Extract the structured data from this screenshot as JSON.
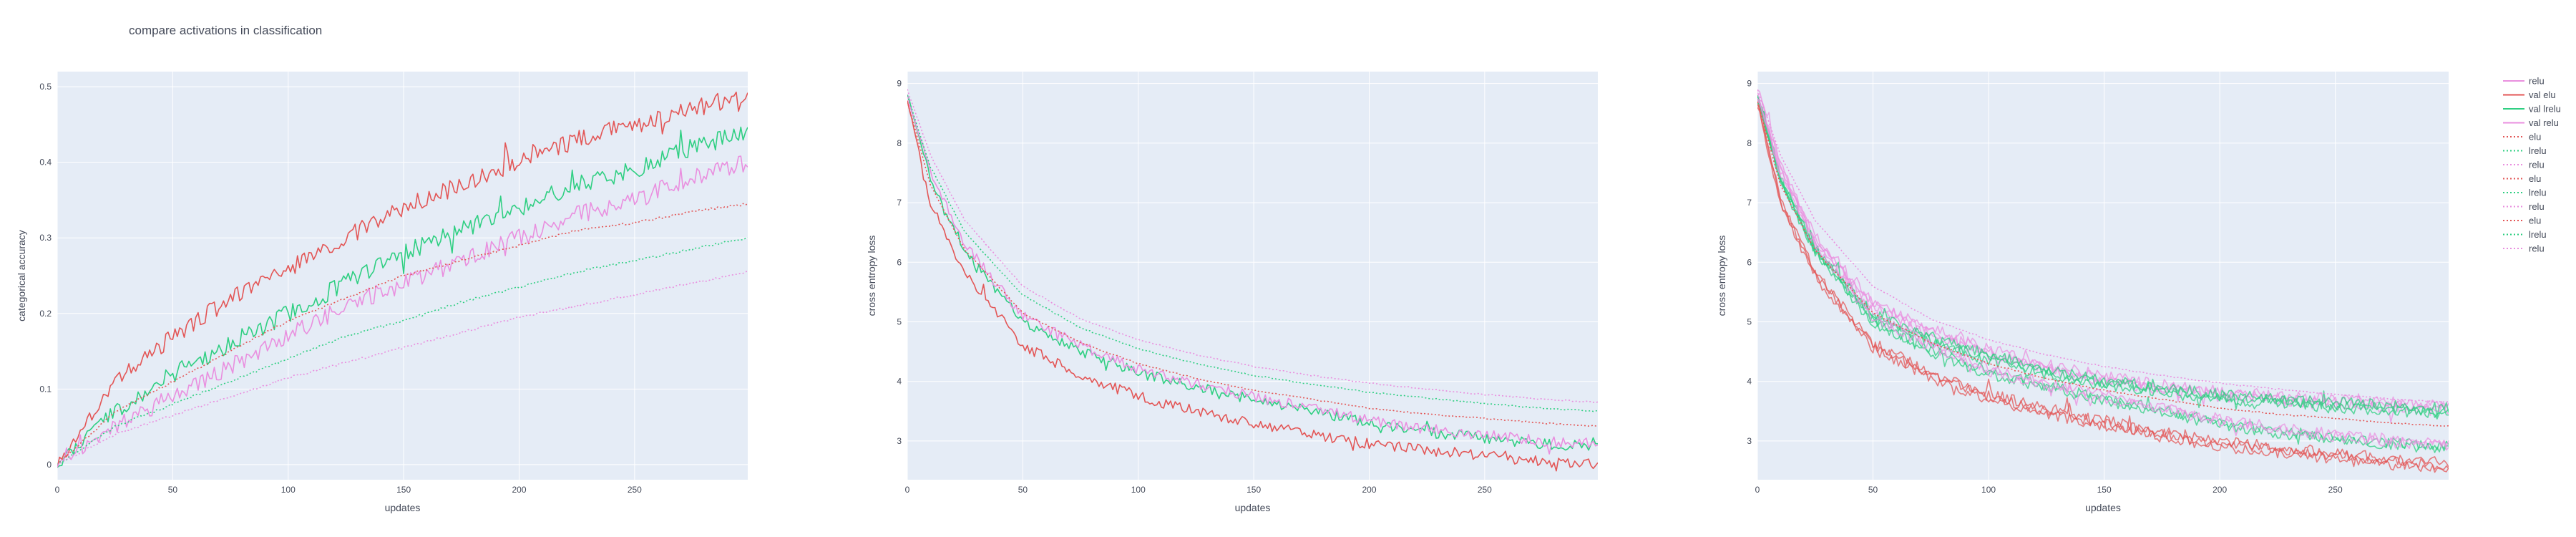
{
  "chart_data": {
    "title": "compare activations in classification",
    "legend": {
      "placement": "right",
      "entries": [
        {
          "label": "relu",
          "color": "#e98fdf",
          "dash": "solid"
        },
        {
          "label": "val elu",
          "color": "#e35656",
          "dash": "solid"
        },
        {
          "label": "val lrelu",
          "color": "#2fcf82",
          "dash": "solid"
        },
        {
          "label": "val relu",
          "color": "#e98fdf",
          "dash": "solid"
        },
        {
          "label": "elu",
          "color": "#e35656",
          "dash": "dot"
        },
        {
          "label": "lrelu",
          "color": "#2fcf82",
          "dash": "dot"
        },
        {
          "label": "relu",
          "color": "#e98fdf",
          "dash": "dot"
        },
        {
          "label": "elu",
          "color": "#e35656",
          "dash": "dot"
        },
        {
          "label": "lrelu",
          "color": "#2fcf82",
          "dash": "dot"
        },
        {
          "label": "relu",
          "color": "#e98fdf",
          "dash": "dot"
        },
        {
          "label": "elu",
          "color": "#e35656",
          "dash": "dot"
        },
        {
          "label": "lrelu",
          "color": "#2fcf82",
          "dash": "dot"
        },
        {
          "label": "relu",
          "color": "#e98fdf",
          "dash": "dot"
        }
      ]
    },
    "colors": {
      "elu": "#e35656",
      "lrelu": "#2fcf82",
      "relu": "#e98fdf",
      "plot_bg": "#e5ecf6",
      "grid": "#ffffff"
    },
    "charts": [
      {
        "type": "line",
        "xlabel": "updates",
        "ylabel": "categorical accuracy",
        "xlim": [
          0,
          299
        ],
        "ylim": [
          -0.02,
          0.52
        ],
        "xticks": [
          0,
          50,
          100,
          150,
          200,
          250
        ],
        "yticks": [
          0,
          0.1,
          0.2,
          0.3,
          0.4,
          0.5
        ],
        "grid": true,
        "series": [
          {
            "name": "val elu",
            "color": "#e35656",
            "dash": "solid",
            "noisy": true,
            "x": [
              0,
              25,
              50,
              75,
              100,
              125,
              150,
              175,
              200,
              225,
              250,
              275,
              299
            ],
            "y": [
              0.0,
              0.11,
              0.17,
              0.22,
              0.26,
              0.3,
              0.34,
              0.37,
              0.4,
              0.43,
              0.45,
              0.47,
              0.49
            ]
          },
          {
            "name": "val lrelu",
            "color": "#2fcf82",
            "dash": "solid",
            "noisy": true,
            "x": [
              0,
              25,
              50,
              75,
              100,
              125,
              150,
              175,
              200,
              225,
              250,
              275,
              299
            ],
            "y": [
              0.0,
              0.07,
              0.12,
              0.16,
              0.2,
              0.24,
              0.28,
              0.31,
              0.34,
              0.37,
              0.39,
              0.42,
              0.44
            ]
          },
          {
            "name": "val relu",
            "color": "#e98fdf",
            "dash": "solid",
            "noisy": true,
            "x": [
              0,
              25,
              50,
              75,
              100,
              125,
              150,
              175,
              200,
              225,
              250,
              275,
              299
            ],
            "y": [
              0.0,
              0.05,
              0.09,
              0.13,
              0.17,
              0.21,
              0.24,
              0.27,
              0.3,
              0.33,
              0.35,
              0.38,
              0.4
            ]
          },
          {
            "name": "elu",
            "color": "#e35656",
            "dash": "dot",
            "noisy": false,
            "x": [
              0,
              25,
              50,
              75,
              100,
              125,
              150,
              175,
              200,
              225,
              250,
              275,
              299
            ],
            "y": [
              0.0,
              0.07,
              0.11,
              0.15,
              0.19,
              0.22,
              0.25,
              0.27,
              0.29,
              0.31,
              0.32,
              0.335,
              0.345
            ]
          },
          {
            "name": "lrelu",
            "color": "#2fcf82",
            "dash": "dot",
            "noisy": false,
            "x": [
              0,
              25,
              50,
              75,
              100,
              125,
              150,
              175,
              200,
              225,
              250,
              275,
              299
            ],
            "y": [
              0.0,
              0.05,
              0.08,
              0.11,
              0.14,
              0.17,
              0.19,
              0.215,
              0.235,
              0.255,
              0.27,
              0.285,
              0.3
            ]
          },
          {
            "name": "relu",
            "color": "#e98fdf",
            "dash": "dot",
            "noisy": false,
            "x": [
              0,
              25,
              50,
              75,
              100,
              125,
              150,
              175,
              200,
              225,
              250,
              275,
              299
            ],
            "y": [
              0.0,
              0.04,
              0.065,
              0.09,
              0.115,
              0.135,
              0.155,
              0.175,
              0.195,
              0.21,
              0.225,
              0.24,
              0.255
            ]
          }
        ]
      },
      {
        "type": "line",
        "xlabel": "updates",
        "ylabel": "cross entropy loss",
        "xlim": [
          0,
          299
        ],
        "ylim": [
          2.35,
          9.2
        ],
        "xticks": [
          0,
          50,
          100,
          150,
          200,
          250
        ],
        "yticks": [
          3,
          4,
          5,
          6,
          7,
          8,
          9
        ],
        "grid": true,
        "series": [
          {
            "name": "val elu",
            "color": "#e35656",
            "dash": "solid",
            "noisy": true,
            "x": [
              0,
              10,
              25,
              50,
              75,
              100,
              125,
              150,
              175,
              200,
              225,
              250,
              275,
              299
            ],
            "y": [
              8.7,
              7.0,
              5.8,
              4.6,
              4.1,
              3.75,
              3.5,
              3.3,
              3.1,
              2.95,
              2.85,
              2.75,
              2.65,
              2.6
            ]
          },
          {
            "name": "val lrelu",
            "color": "#2fcf82",
            "dash": "solid",
            "noisy": true,
            "x": [
              0,
              10,
              25,
              50,
              75,
              100,
              125,
              150,
              175,
              200,
              225,
              250,
              275,
              299
            ],
            "y": [
              8.8,
              7.4,
              6.2,
              5.0,
              4.5,
              4.15,
              3.9,
              3.7,
              3.5,
              3.3,
              3.15,
              3.05,
              2.95,
              2.9
            ]
          },
          {
            "name": "val relu",
            "color": "#e98fdf",
            "dash": "solid",
            "noisy": true,
            "x": [
              0,
              10,
              25,
              50,
              75,
              100,
              125,
              150,
              175,
              200,
              225,
              250,
              275,
              299
            ],
            "y": [
              8.8,
              7.5,
              6.3,
              5.1,
              4.6,
              4.2,
              3.95,
              3.75,
              3.55,
              3.35,
              3.2,
              3.1,
              3.0,
              2.95
            ]
          },
          {
            "name": "elu",
            "color": "#e35656",
            "dash": "dot",
            "noisy": false,
            "x": [
              0,
              10,
              25,
              50,
              75,
              100,
              125,
              150,
              175,
              200,
              225,
              250,
              275,
              299
            ],
            "y": [
              8.7,
              7.3,
              6.2,
              5.15,
              4.65,
              4.3,
              4.05,
              3.85,
              3.7,
              3.55,
              3.45,
              3.38,
              3.3,
              3.25
            ]
          },
          {
            "name": "lrelu",
            "color": "#2fcf82",
            "dash": "dot",
            "noisy": false,
            "x": [
              0,
              10,
              25,
              50,
              75,
              100,
              125,
              150,
              175,
              200,
              225,
              250,
              275,
              299
            ],
            "y": [
              8.8,
              7.6,
              6.5,
              5.45,
              4.9,
              4.55,
              4.3,
              4.1,
              3.95,
              3.82,
              3.72,
              3.63,
              3.55,
              3.5
            ]
          },
          {
            "name": "relu",
            "color": "#e98fdf",
            "dash": "dot",
            "noisy": false,
            "x": [
              0,
              10,
              25,
              50,
              75,
              100,
              125,
              150,
              175,
              200,
              225,
              250,
              275,
              299
            ],
            "y": [
              8.9,
              7.8,
              6.7,
              5.6,
              5.05,
              4.7,
              4.45,
              4.25,
              4.1,
              3.97,
              3.87,
              3.78,
              3.7,
              3.65
            ]
          }
        ]
      },
      {
        "type": "line",
        "xlabel": "updates",
        "ylabel": "cross entropy loss",
        "xlim": [
          0,
          299
        ],
        "ylim": [
          2.35,
          9.2
        ],
        "xticks": [
          0,
          50,
          100,
          150,
          200,
          250
        ],
        "yticks": [
          3,
          4,
          5,
          6,
          7,
          8,
          9
        ],
        "grid": true,
        "series": [
          {
            "name": "relu (bundle)",
            "color": "#e98fdf",
            "dash": "solid",
            "noisy": true,
            "bundle": 3,
            "x": [
              0,
              10,
              25,
              50,
              75,
              100,
              125,
              150,
              175,
              200,
              225,
              250,
              275,
              299
            ],
            "y": [
              8.9,
              7.6,
              6.4,
              5.3,
              4.85,
              4.5,
              4.25,
              4.05,
              3.9,
              3.8,
              3.72,
              3.66,
              3.6,
              3.55
            ]
          },
          {
            "name": "lrelu (bundle)",
            "color": "#2fcf82",
            "dash": "solid",
            "noisy": true,
            "bundle": 3,
            "x": [
              0,
              10,
              25,
              50,
              75,
              100,
              125,
              150,
              175,
              200,
              225,
              250,
              275,
              299
            ],
            "y": [
              8.8,
              7.4,
              6.2,
              5.1,
              4.7,
              4.4,
              4.15,
              3.98,
              3.85,
              3.75,
              3.67,
              3.6,
              3.55,
              3.5
            ]
          },
          {
            "name": "val elu",
            "color": "#e35656",
            "dash": "solid",
            "noisy": true,
            "bundle": 3,
            "x": [
              0,
              10,
              25,
              50,
              75,
              100,
              125,
              150,
              175,
              200,
              225,
              250,
              275,
              299
            ],
            "y": [
              8.7,
              7.0,
              5.8,
              4.6,
              4.1,
              3.75,
              3.5,
              3.3,
              3.1,
              2.95,
              2.85,
              2.75,
              2.65,
              2.6
            ]
          },
          {
            "name": "val lrelu",
            "color": "#2fcf82",
            "dash": "solid",
            "noisy": true,
            "bundle": 2,
            "x": [
              0,
              10,
              25,
              50,
              75,
              100,
              125,
              150,
              175,
              200,
              225,
              250,
              275,
              299
            ],
            "y": [
              8.8,
              7.4,
              6.2,
              5.0,
              4.5,
              4.15,
              3.9,
              3.7,
              3.5,
              3.3,
              3.15,
              3.05,
              2.95,
              2.9
            ]
          },
          {
            "name": "val relu",
            "color": "#e98fdf",
            "dash": "solid",
            "noisy": true,
            "bundle": 2,
            "x": [
              0,
              10,
              25,
              50,
              75,
              100,
              125,
              150,
              175,
              200,
              225,
              250,
              275,
              299
            ],
            "y": [
              8.8,
              7.5,
              6.3,
              5.1,
              4.6,
              4.2,
              3.95,
              3.75,
              3.55,
              3.35,
              3.2,
              3.1,
              3.0,
              2.95
            ]
          },
          {
            "name": "elu",
            "color": "#e35656",
            "dash": "dot",
            "noisy": false,
            "x": [
              0,
              10,
              25,
              50,
              75,
              100,
              125,
              150,
              175,
              200,
              225,
              250,
              275,
              299
            ],
            "y": [
              8.7,
              7.3,
              6.2,
              5.15,
              4.65,
              4.3,
              4.05,
              3.85,
              3.7,
              3.55,
              3.45,
              3.38,
              3.3,
              3.25
            ]
          },
          {
            "name": "relu",
            "color": "#e98fdf",
            "dash": "dot",
            "noisy": false,
            "x": [
              0,
              10,
              25,
              50,
              75,
              100,
              125,
              150,
              175,
              200,
              225,
              250,
              275,
              299
            ],
            "y": [
              8.9,
              7.8,
              6.7,
              5.6,
              5.05,
              4.7,
              4.45,
              4.25,
              4.1,
              3.97,
              3.87,
              3.78,
              3.7,
              3.65
            ]
          }
        ]
      }
    ]
  }
}
